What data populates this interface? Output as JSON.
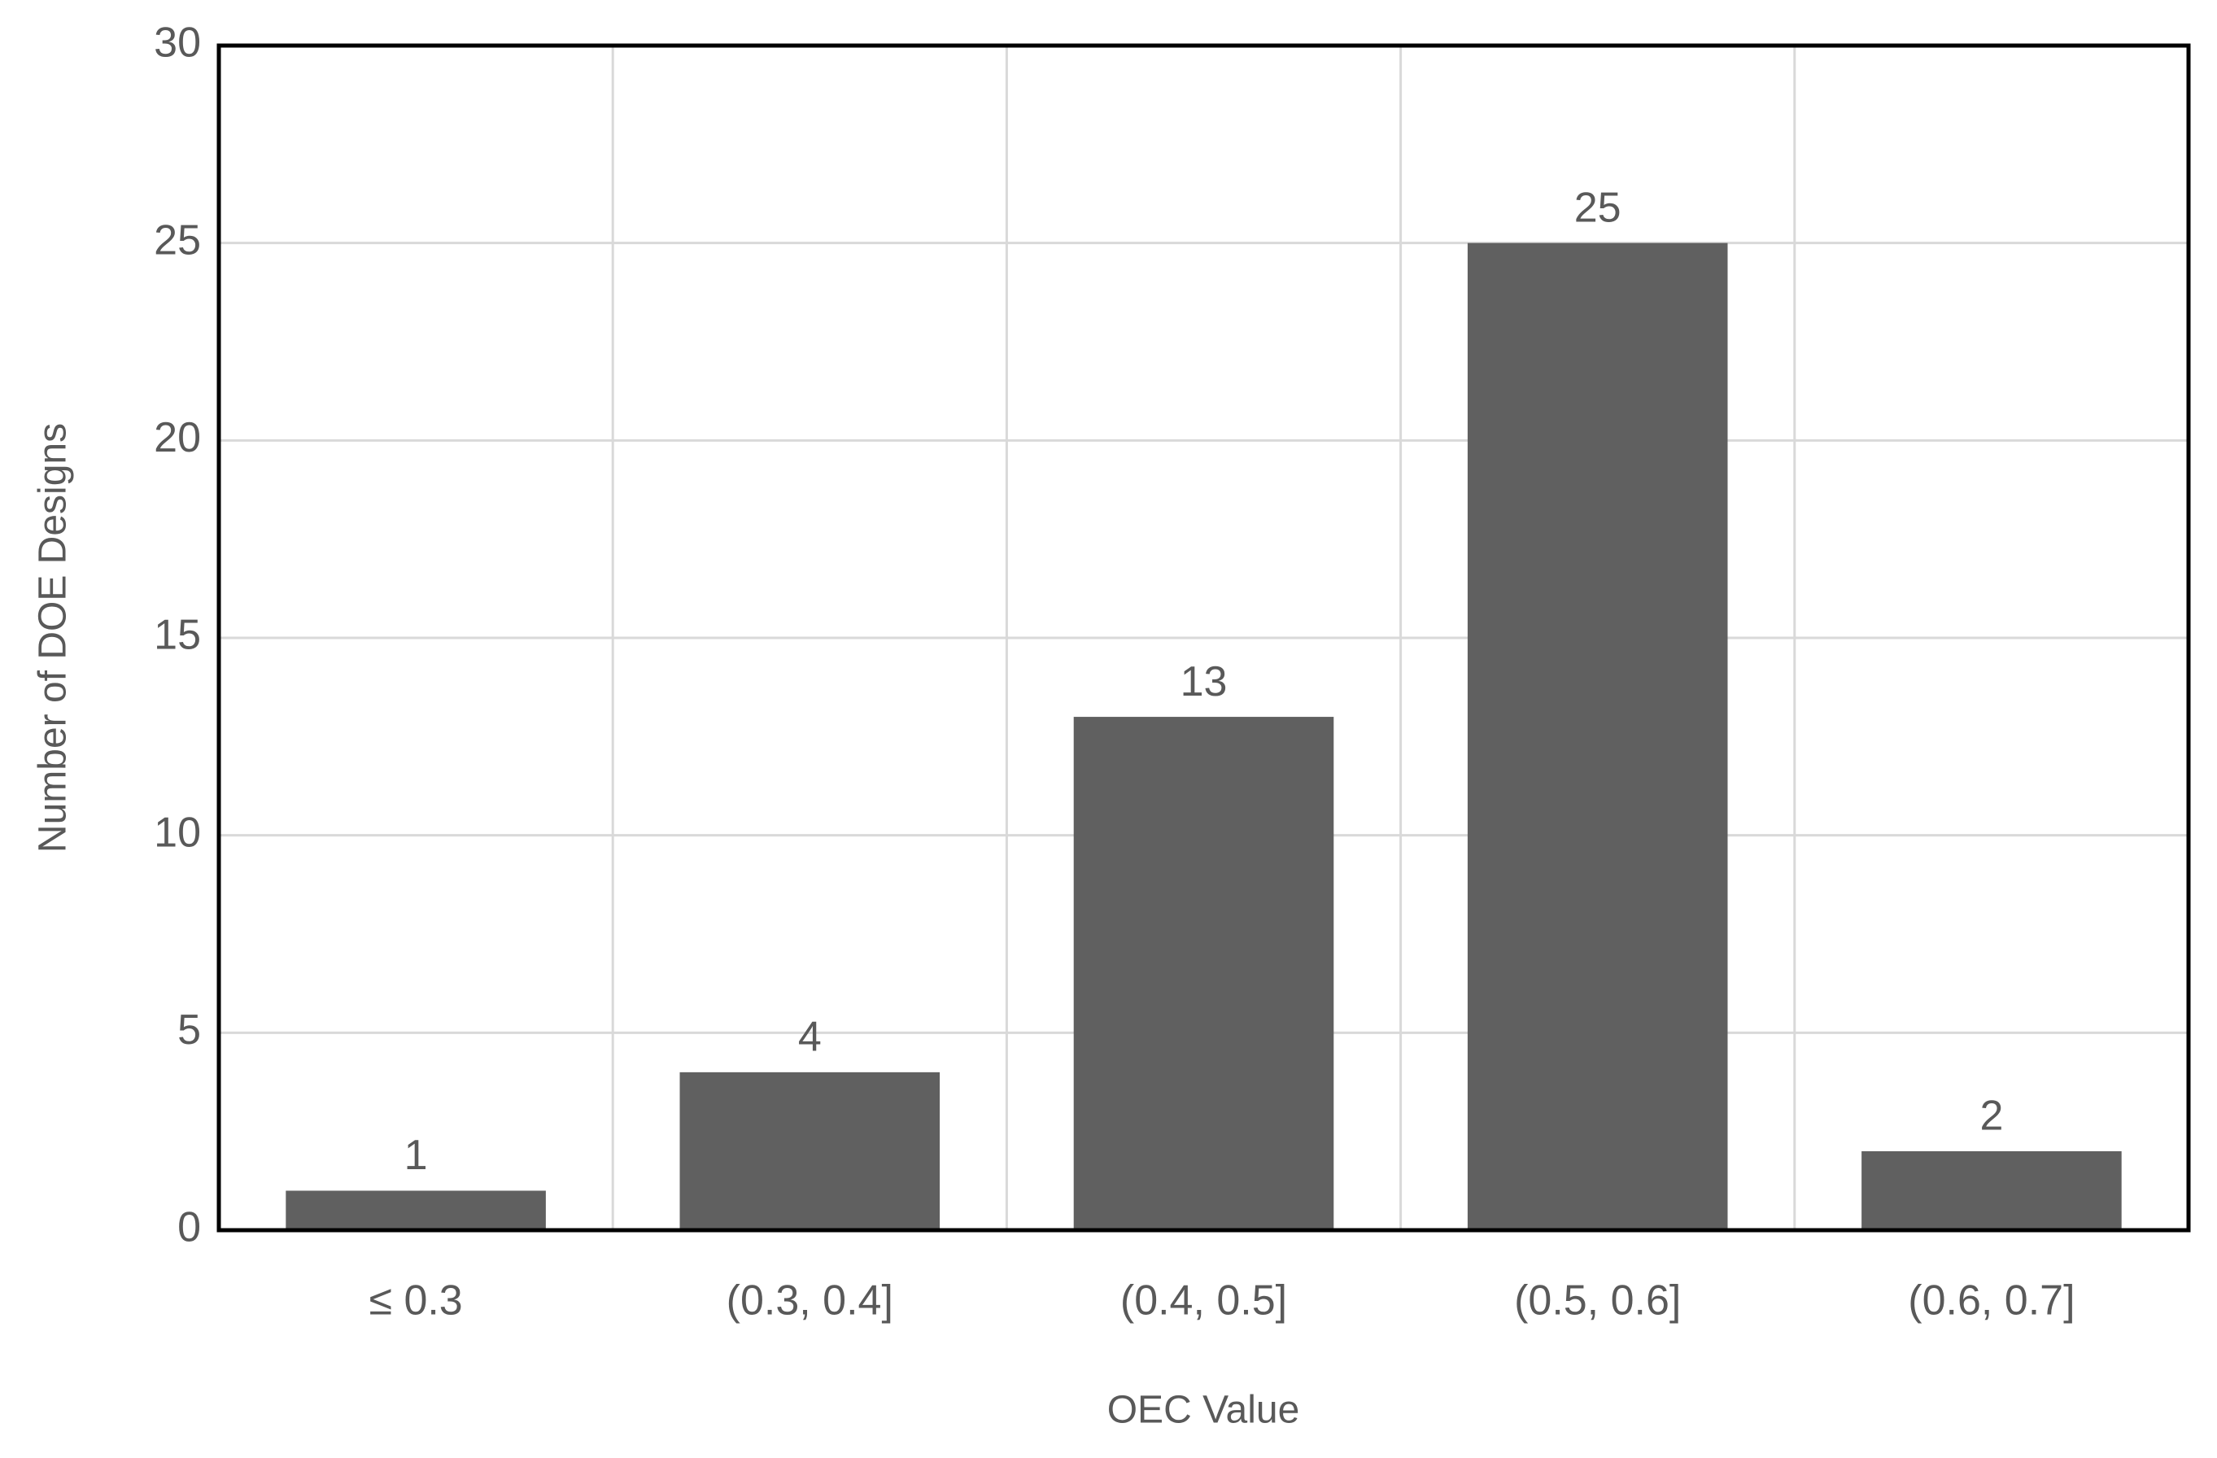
{
  "chart_data": {
    "type": "bar",
    "x_label": "OEC Value",
    "y_label": "Number of DOE Designs",
    "categories": [
      "≤ 0.3",
      "(0.3, 0.4]",
      "(0.4, 0.5]",
      "(0.5, 0.6]",
      "(0.6, 0.7]"
    ],
    "values": [
      1,
      4,
      13,
      25,
      2
    ],
    "color": "#606060",
    "ylim": [
      0,
      30
    ],
    "yticks": [
      0,
      5,
      10,
      15,
      20,
      25,
      30
    ],
    "grid": true
  }
}
